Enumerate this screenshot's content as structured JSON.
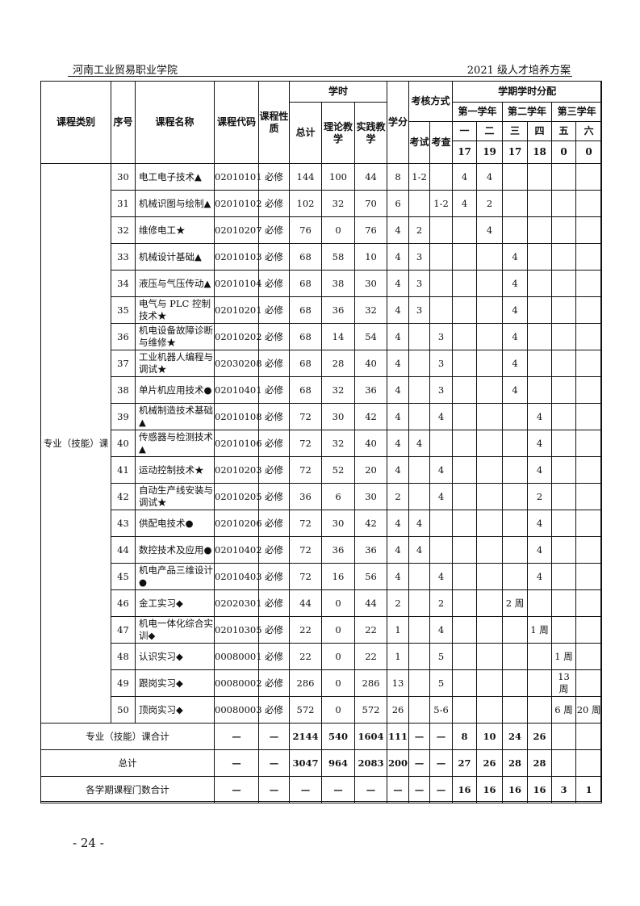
{
  "header": {
    "left": "河南工业贸易职业学院",
    "right": "2021 级人才培养方案"
  },
  "columns": {
    "category": "课程类别",
    "seq": "序号",
    "name": "课程名称",
    "code": "课程代码",
    "nature": "课程性质",
    "hours": "学时",
    "total": "总计",
    "theory": "理论教学",
    "practice": "实践教学",
    "credit": "学分",
    "assess": "考核方式",
    "exam": "考试",
    "check": "考查",
    "distribution": "学期学时分配",
    "years": [
      "第一学年",
      "第二学年",
      "第三学年"
    ],
    "semesters": [
      "一",
      "二",
      "三",
      "四",
      "五",
      "六"
    ],
    "weeks": [
      "17",
      "19",
      "17",
      "18",
      "0",
      "0"
    ]
  },
  "category_label": "专业（技能）课",
  "rows": [
    {
      "seq": "30",
      "name": "电工电子技术▲",
      "code": "02010101",
      "nature": "必修",
      "total": "144",
      "theory": "100",
      "practice": "44",
      "credit": "8",
      "exam": "1-2",
      "check": "",
      "sem": [
        "4",
        "4",
        "",
        "",
        "",
        ""
      ]
    },
    {
      "seq": "31",
      "name": "机械识图与绘制▲",
      "code": "02010102",
      "nature": "必修",
      "total": "102",
      "theory": "32",
      "practice": "70",
      "credit": "6",
      "exam": "",
      "check": "1-2",
      "sem": [
        "4",
        "2",
        "",
        "",
        "",
        ""
      ]
    },
    {
      "seq": "32",
      "name": "维修电工★",
      "code": "02010207",
      "nature": "必修",
      "total": "76",
      "theory": "0",
      "practice": "76",
      "credit": "4",
      "exam": "2",
      "check": "",
      "sem": [
        "",
        "4",
        "",
        "",
        "",
        ""
      ]
    },
    {
      "seq": "33",
      "name": "机械设计基础▲",
      "code": "02010103",
      "nature": "必修",
      "total": "68",
      "theory": "58",
      "practice": "10",
      "credit": "4",
      "exam": "3",
      "check": "",
      "sem": [
        "",
        "",
        "4",
        "",
        "",
        ""
      ]
    },
    {
      "seq": "34",
      "name": "液压与气压传动▲",
      "code": "02010104",
      "nature": "必修",
      "total": "68",
      "theory": "38",
      "practice": "30",
      "credit": "4",
      "exam": "3",
      "check": "",
      "sem": [
        "",
        "",
        "4",
        "",
        "",
        ""
      ]
    },
    {
      "seq": "35",
      "name": "电气与 PLC 控制技术★",
      "code": "02010201",
      "nature": "必修",
      "total": "68",
      "theory": "36",
      "practice": "32",
      "credit": "4",
      "exam": "3",
      "check": "",
      "sem": [
        "",
        "",
        "4",
        "",
        "",
        ""
      ]
    },
    {
      "seq": "36",
      "name": "机电设备故障诊断与维修★",
      "code": "02010202",
      "nature": "必修",
      "total": "68",
      "theory": "14",
      "practice": "54",
      "credit": "4",
      "exam": "",
      "check": "3",
      "sem": [
        "",
        "",
        "4",
        "",
        "",
        ""
      ]
    },
    {
      "seq": "37",
      "name": "工业机器人编程与调试★",
      "code": "02030208",
      "nature": "必修",
      "total": "68",
      "theory": "28",
      "practice": "40",
      "credit": "4",
      "exam": "",
      "check": "3",
      "sem": [
        "",
        "",
        "4",
        "",
        "",
        ""
      ]
    },
    {
      "seq": "38",
      "name": "单片机应用技术●",
      "code": "02010401",
      "nature": "必修",
      "total": "68",
      "theory": "32",
      "practice": "36",
      "credit": "4",
      "exam": "",
      "check": "3",
      "sem": [
        "",
        "",
        "4",
        "",
        "",
        ""
      ]
    },
    {
      "seq": "39",
      "name": "机械制造技术基础▲",
      "code": "02010108",
      "nature": "必修",
      "total": "72",
      "theory": "30",
      "practice": "42",
      "credit": "4",
      "exam": "",
      "check": "4",
      "sem": [
        "",
        "",
        "",
        "4",
        "",
        ""
      ]
    },
    {
      "seq": "40",
      "name": "传感器与检测技术▲",
      "code": "02010106",
      "nature": "必修",
      "total": "72",
      "theory": "32",
      "practice": "40",
      "credit": "4",
      "exam": "4",
      "check": "",
      "sem": [
        "",
        "",
        "",
        "4",
        "",
        ""
      ]
    },
    {
      "seq": "41",
      "name": "运动控制技术★",
      "code": "02010203",
      "nature": "必修",
      "total": "72",
      "theory": "52",
      "practice": "20",
      "credit": "4",
      "exam": "",
      "check": "4",
      "sem": [
        "",
        "",
        "",
        "4",
        "",
        ""
      ]
    },
    {
      "seq": "42",
      "name": "自动生产线安装与调试★",
      "code": "02010205",
      "nature": "必修",
      "total": "36",
      "theory": "6",
      "practice": "30",
      "credit": "2",
      "exam": "",
      "check": "4",
      "sem": [
        "",
        "",
        "",
        "2",
        "",
        ""
      ]
    },
    {
      "seq": "43",
      "name": "供配电技术●",
      "code": "02010206",
      "nature": "必修",
      "total": "72",
      "theory": "30",
      "practice": "42",
      "credit": "4",
      "exam": "4",
      "check": "",
      "sem": [
        "",
        "",
        "",
        "4",
        "",
        ""
      ]
    },
    {
      "seq": "44",
      "name": "数控技术及应用●",
      "code": "02010402",
      "nature": "必修",
      "total": "72",
      "theory": "36",
      "practice": "36",
      "credit": "4",
      "exam": "4",
      "check": "",
      "sem": [
        "",
        "",
        "",
        "4",
        "",
        ""
      ]
    },
    {
      "seq": "45",
      "name": "机电产品三维设计●",
      "code": "02010403",
      "nature": "必修",
      "total": "72",
      "theory": "16",
      "practice": "56",
      "credit": "4",
      "exam": "",
      "check": "4",
      "sem": [
        "",
        "",
        "",
        "4",
        "",
        ""
      ]
    },
    {
      "seq": "46",
      "name": "金工实习◆",
      "code": "02020301",
      "nature": "必修",
      "total": "44",
      "theory": "0",
      "practice": "44",
      "credit": "2",
      "exam": "",
      "check": "2",
      "sem": [
        "",
        "",
        "2 周",
        "",
        "",
        ""
      ]
    },
    {
      "seq": "47",
      "name": "机电一体化综合实训◆",
      "code": "02010305",
      "nature": "必修",
      "total": "22",
      "theory": "0",
      "practice": "22",
      "credit": "1",
      "exam": "",
      "check": "4",
      "sem": [
        "",
        "",
        "",
        "1 周",
        "",
        ""
      ]
    },
    {
      "seq": "48",
      "name": "认识实习◆",
      "code": "00080001",
      "nature": "必修",
      "total": "22",
      "theory": "0",
      "practice": "22",
      "credit": "1",
      "exam": "",
      "check": "5",
      "sem": [
        "",
        "",
        "",
        "",
        "1 周",
        ""
      ]
    },
    {
      "seq": "49",
      "name": "跟岗实习◆",
      "code": "00080002",
      "nature": "必修",
      "total": "286",
      "theory": "0",
      "practice": "286",
      "credit": "13",
      "exam": "",
      "check": "5",
      "sem": [
        "",
        "",
        "",
        "",
        "13 周",
        ""
      ]
    },
    {
      "seq": "50",
      "name": "顶岗实习◆",
      "code": "00080003",
      "nature": "必修",
      "total": "572",
      "theory": "0",
      "practice": "572",
      "credit": "26",
      "exam": "",
      "check": "5-6",
      "sem": [
        "",
        "",
        "",
        "",
        "6 周",
        "20 周"
      ]
    }
  ],
  "summary": [
    {
      "label": "专业（技能）课合计",
      "cells": [
        "—",
        "—",
        "2144",
        "540",
        "1604",
        "111",
        "—",
        "—",
        "8",
        "10",
        "24",
        "26",
        "",
        ""
      ]
    },
    {
      "label": "总计",
      "cells": [
        "—",
        "—",
        "3047",
        "964",
        "2083",
        "200",
        "—",
        "—",
        "27",
        "26",
        "28",
        "28",
        "",
        ""
      ]
    },
    {
      "label": "各学期课程门数合计",
      "cells": [
        "—",
        "—",
        "—",
        "—",
        "—",
        "—",
        "—",
        "—",
        "16",
        "16",
        "16",
        "16",
        "3",
        "1"
      ]
    }
  ],
  "page_number": "- 24 -"
}
